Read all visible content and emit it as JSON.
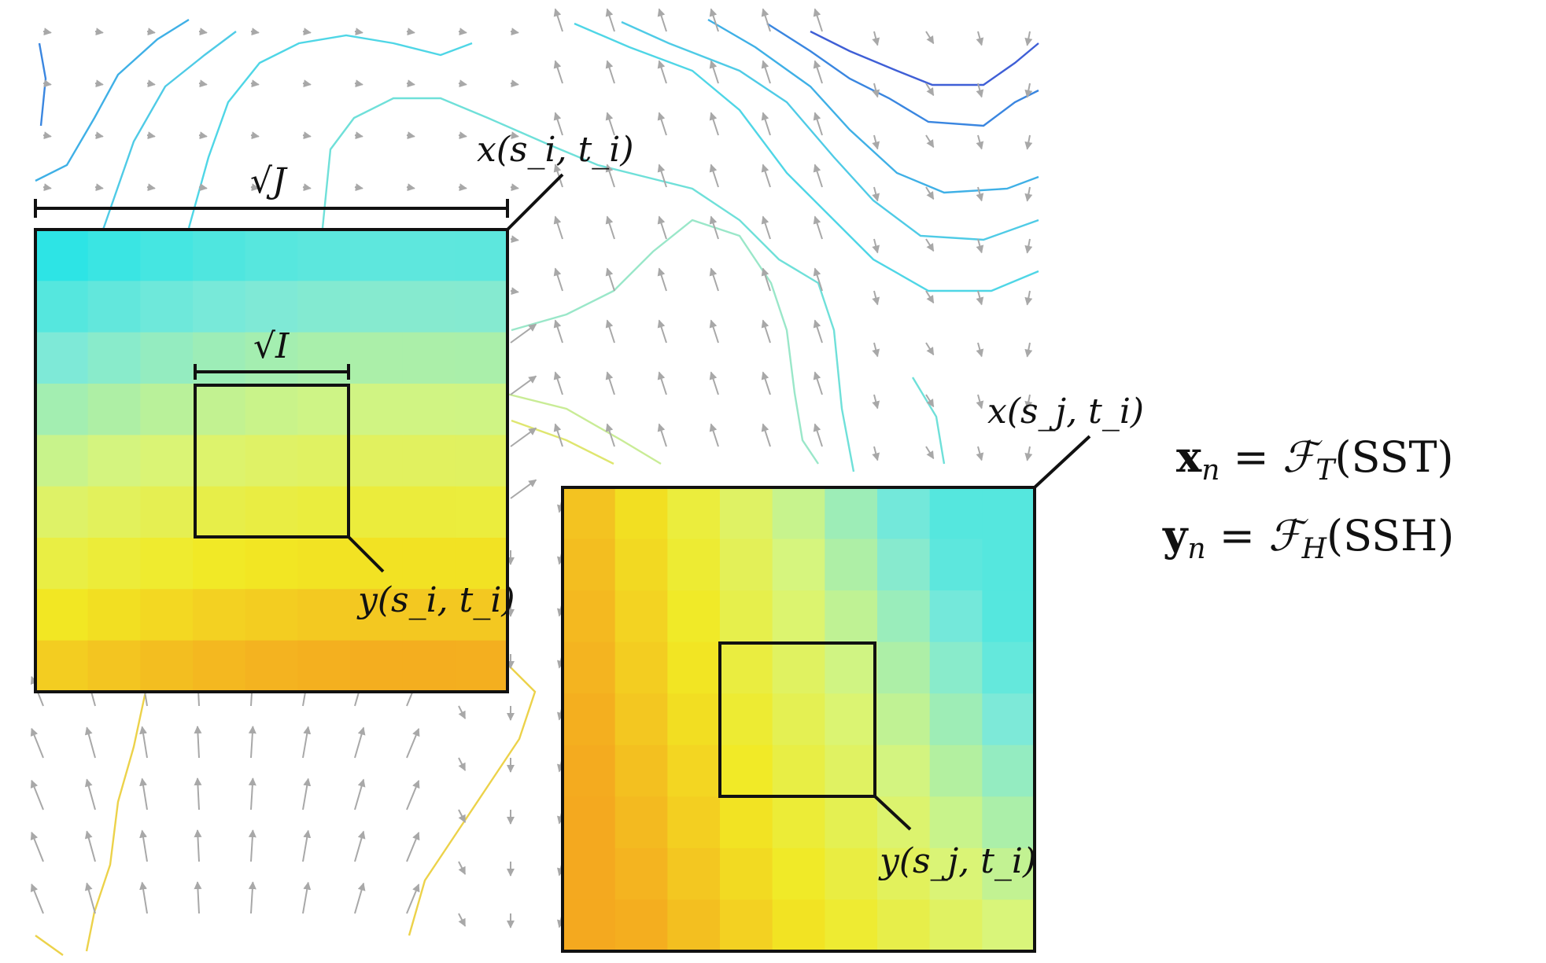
{
  "labels": {
    "sqrt_j": "√J",
    "sqrt_i": "√I",
    "x_si_ti": "x(s_i, t_i)",
    "y_si_ti": "y(s_i, t_i)",
    "x_sj_ti": "x(s_j, t_i)",
    "y_sj_ti": "y(s_j, t_i)"
  },
  "equations": {
    "eq1": {
      "lhs_bold": "x",
      "lhs_sub": "n",
      "eq": " = ",
      "op": "ℱ",
      "op_sub": "T",
      "arg": "(SST)"
    },
    "eq2": {
      "lhs_bold": "y",
      "lhs_sub": "n",
      "eq": " = ",
      "op": "ℱ",
      "op_sub": "H",
      "arg": "(SSH)"
    }
  },
  "colors": {
    "cyan": "#19e3e8",
    "aqua": "#7de9d8",
    "yellow_green": "#d9f57a",
    "yellow": "#f2e923",
    "orange": "#f4a91f",
    "contour_blue": "#3f5fd6",
    "contour_cyan": "#4fd6e6",
    "contour_yellow": "#ecd24a",
    "arrow_gray": "#a8a8a8",
    "frame": "#111111"
  }
}
